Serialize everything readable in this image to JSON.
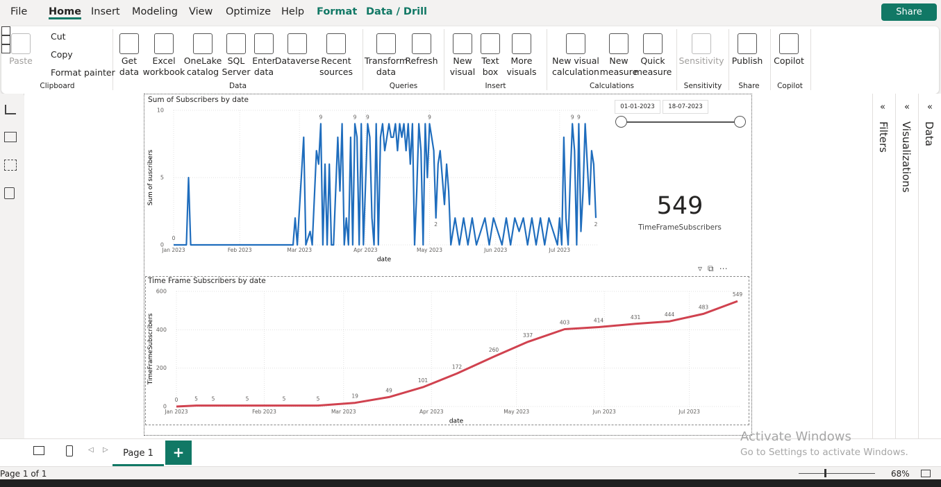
{
  "ui": {
    "tabs": [
      "File",
      "Home",
      "Insert",
      "Modeling",
      "View",
      "Optimize",
      "Help",
      "Format",
      "Data / Drill"
    ],
    "share": "Share",
    "groups": [
      {
        "name": "Clipboard",
        "buttons": [
          "Paste",
          "Cut",
          "Copy",
          "Format painter"
        ]
      },
      {
        "name": "Data",
        "buttons": [
          "Get data",
          "Excel workbook",
          "OneLake catalog",
          "SQL Server",
          "Enter data",
          "Dataverse",
          "Recent sources"
        ]
      },
      {
        "name": "Queries",
        "buttons": [
          "Transform data",
          "Refresh"
        ]
      },
      {
        "name": "Insert",
        "buttons": [
          "New visual",
          "Text box",
          "More visuals"
        ]
      },
      {
        "name": "Calculations",
        "buttons": [
          "New visual calculation",
          "New measure",
          "Quick measure"
        ]
      },
      {
        "name": "Sensitivity",
        "buttons": [
          "Sensitivity"
        ]
      },
      {
        "name": "Share",
        "buttons": [
          "Publish"
        ]
      },
      {
        "name": "Copilot",
        "buttons": [
          "Copilot"
        ]
      }
    ],
    "panes": [
      "Filters",
      "Visualizations",
      "Data"
    ],
    "slicer": {
      "start": "01-01-2023",
      "end": "18-07-2023"
    },
    "card": {
      "value": 549,
      "label": "TimeFrameSubscribers"
    },
    "page_tab": "Page 1",
    "add_page": "+",
    "status": "Page 1 of 1",
    "zoom": "68%",
    "watermark": {
      "title": "Activate Windows",
      "text": "Go to Settings to activate Windows."
    }
  },
  "chart_data": [
    {
      "type": "line",
      "title": "Sum of Subscribers by date",
      "x_label": "date",
      "y_label": "Sum of suscribers",
      "xlim": [
        0,
        198
      ],
      "ylim": [
        0,
        10
      ],
      "yticks": [
        0,
        5,
        10
      ],
      "grid": true,
      "xticks": [
        {
          "value": 0,
          "label": "Jan 2023"
        },
        {
          "value": 31,
          "label": "Feb 2023"
        },
        {
          "value": 59,
          "label": "Mar 2023"
        },
        {
          "value": 90,
          "label": "Apr 2023"
        },
        {
          "value": 120,
          "label": "May 2023"
        },
        {
          "value": 151,
          "label": "Jun 2023"
        },
        {
          "value": 181,
          "label": "Jul 2023"
        }
      ],
      "series": [
        {
          "name": "Sum of Subscribers",
          "color": "#1f6dbd",
          "x": [
            0,
            6,
            7,
            8,
            56,
            57,
            58,
            61,
            62,
            64,
            65,
            67,
            68,
            69,
            70,
            71,
            72,
            73,
            74,
            75,
            77,
            78,
            79,
            80,
            81,
            82,
            83,
            84,
            85,
            86,
            87,
            88,
            89,
            91,
            92,
            93,
            94,
            95,
            96,
            97,
            98,
            99,
            100,
            101,
            102,
            103,
            104,
            105,
            106,
            107,
            108,
            109,
            110,
            111,
            112,
            113,
            114,
            115,
            116,
            117,
            118,
            119,
            120,
            121,
            122,
            123,
            124,
            125,
            127,
            128,
            129,
            130,
            132,
            134,
            136,
            138,
            140,
            142,
            144,
            146,
            148,
            150,
            152,
            154,
            156,
            158,
            160,
            162,
            164,
            166,
            168,
            170,
            172,
            174,
            176,
            178,
            180,
            181,
            182,
            183,
            184,
            185,
            186,
            187,
            188,
            189,
            190,
            191,
            192,
            193,
            194,
            195,
            196,
            197,
            198
          ],
          "values": [
            0,
            0,
            5,
            0,
            0,
            2,
            0,
            8,
            0,
            1,
            0,
            7,
            6,
            9,
            0,
            6,
            0,
            6,
            0,
            0,
            8,
            4,
            9,
            0,
            2,
            0,
            8,
            0,
            9,
            8,
            0,
            9,
            0,
            9,
            8,
            2,
            0,
            9,
            0,
            8,
            9,
            7,
            8,
            9,
            8,
            8,
            9,
            7,
            9,
            8,
            9,
            7,
            9,
            6,
            9,
            0,
            4,
            9,
            7,
            0,
            9,
            5,
            9,
            8,
            7,
            2,
            6,
            7,
            3,
            6,
            4,
            0,
            2,
            0,
            2,
            0,
            2,
            0,
            1,
            2,
            0,
            2,
            1,
            0,
            2,
            0,
            2,
            1,
            2,
            0,
            2,
            0,
            2,
            0,
            2,
            1,
            0,
            2,
            0,
            8,
            2,
            0,
            5,
            9,
            7,
            0,
            9,
            1,
            4,
            9,
            6,
            3,
            7,
            6,
            2
          ],
          "value_labels": [
            "0",
            null,
            null,
            null,
            null,
            null,
            null,
            null,
            null,
            null,
            null,
            null,
            null,
            "9",
            null,
            null,
            null,
            null,
            null,
            null,
            null,
            null,
            null,
            null,
            null,
            null,
            null,
            null,
            "9",
            null,
            null,
            null,
            null,
            "9",
            null,
            null,
            null,
            null,
            null,
            null,
            null,
            null,
            null,
            null,
            null,
            null,
            null,
            null,
            null,
            null,
            null,
            null,
            null,
            null,
            null,
            null,
            null,
            null,
            null,
            null,
            null,
            null,
            "9",
            null,
            null,
            "2",
            null,
            null,
            null,
            null,
            null,
            null,
            null,
            null,
            null,
            null,
            null,
            null,
            null,
            null,
            null,
            null,
            null,
            null,
            null,
            null,
            null,
            null,
            null,
            null,
            null,
            null,
            null,
            null,
            null,
            null,
            null,
            null,
            null,
            null,
            null,
            null,
            null,
            "9",
            null,
            null,
            "9",
            null,
            null,
            null,
            null,
            null,
            null,
            null,
            "2"
          ]
        }
      ]
    },
    {
      "type": "line",
      "title": "Time Frame Subscribers by date",
      "x_label": "date",
      "y_label": "TimeFrameSubscribers",
      "xlim": [
        0,
        198
      ],
      "ylim": [
        0,
        600
      ],
      "yticks": [
        0,
        200,
        400,
        600
      ],
      "grid": true,
      "xticks": [
        {
          "value": 0,
          "label": "Jan 2023"
        },
        {
          "value": 31,
          "label": "Feb 2023"
        },
        {
          "value": 59,
          "label": "Mar 2023"
        },
        {
          "value": 90,
          "label": "Apr 2023"
        },
        {
          "value": 120,
          "label": "May 2023"
        },
        {
          "value": 151,
          "label": "Jun 2023"
        },
        {
          "value": 181,
          "label": "Jul 2023"
        }
      ],
      "series": [
        {
          "name": "TimeFrameSubscribers",
          "color": "#d0424f",
          "x": [
            0,
            7,
            13,
            25,
            38,
            50,
            63,
            75,
            87,
            99,
            112,
            124,
            137,
            149,
            162,
            174,
            186,
            198
          ],
          "values": [
            0,
            5,
            5,
            5,
            5,
            5,
            19,
            49,
            101,
            172,
            260,
            337,
            403,
            414,
            431,
            444,
            483,
            549
          ]
        }
      ]
    }
  ]
}
